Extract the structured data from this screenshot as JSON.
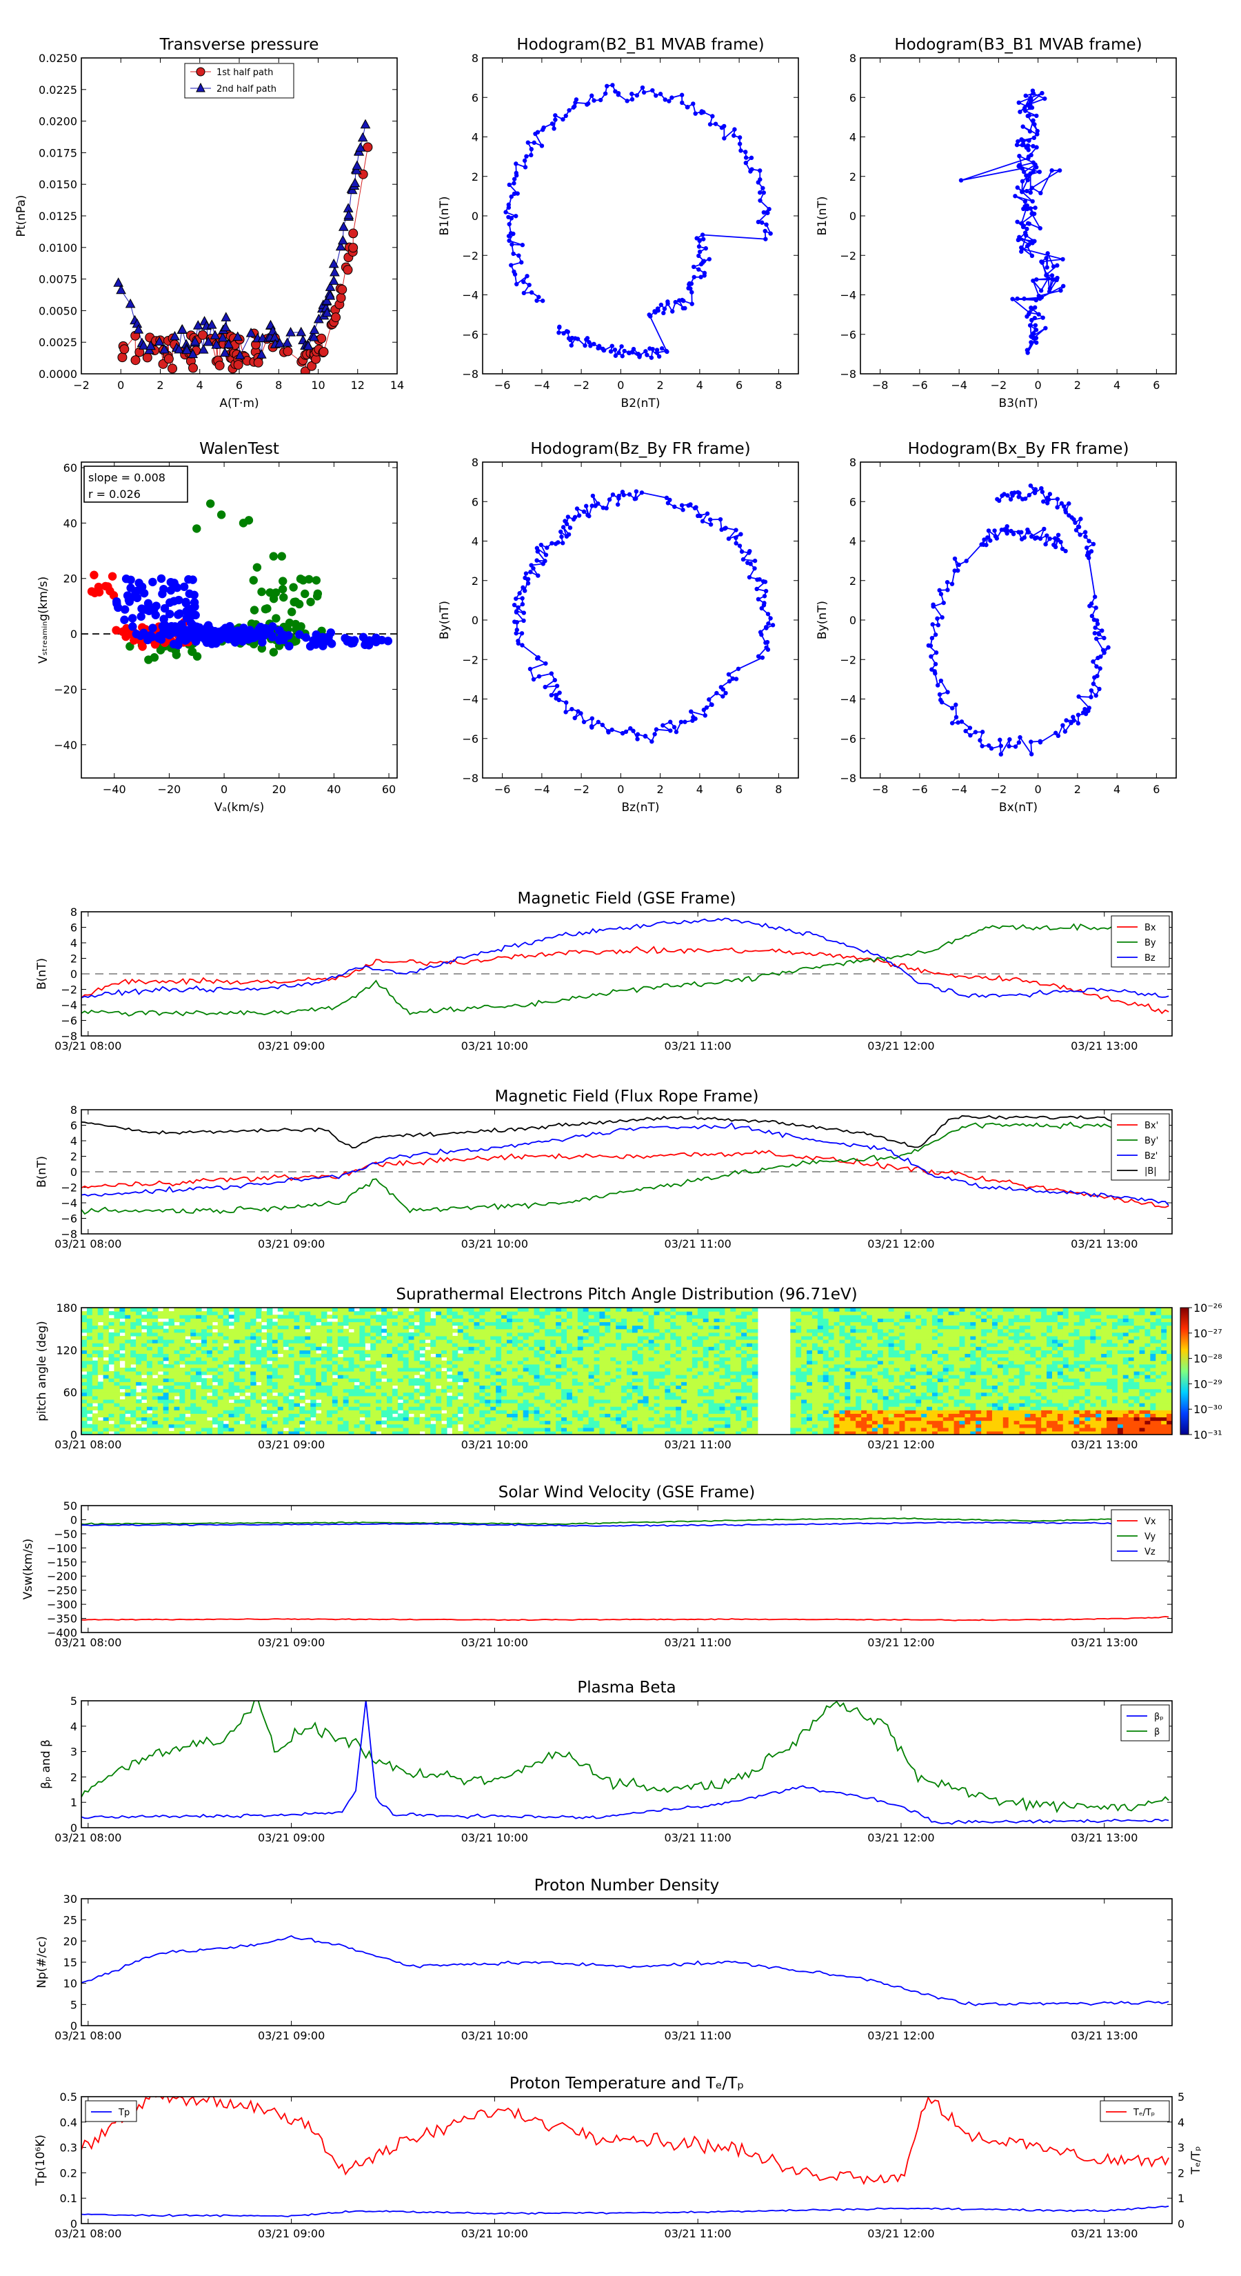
{
  "colors": {
    "red": "#ff0000",
    "green": "#008000",
    "blue": "#0000ff",
    "black": "#000000",
    "marker_red": "#d62020",
    "marker_blue": "#1515b5"
  },
  "chart_data": [
    {
      "id": "pt",
      "type": "scatter",
      "title": "Transverse pressure",
      "xlabel": "A(T·m)",
      "ylabel": "Pt(nPa)",
      "xlim": [
        -2,
        14
      ],
      "ylim": [
        0,
        0.025
      ],
      "xticks": [
        -2,
        0,
        2,
        4,
        6,
        8,
        10,
        12,
        14
      ],
      "yticks": [
        0.0,
        0.0025,
        0.005,
        0.0075,
        0.01,
        0.0125,
        0.015,
        0.0175,
        0.02,
        0.0225,
        0.025
      ],
      "ytick_labels": [
        "0.0000",
        "0.0025",
        "0.0050",
        "0.0075",
        "0.0100",
        "0.0125",
        "0.0150",
        "0.0175",
        "0.0200",
        "0.0225",
        "0.0250"
      ],
      "legend_position": "top-center",
      "series": [
        {
          "name": "1st half path",
          "marker": "circle"
        },
        {
          "name": "2nd half path",
          "marker": "triangle"
        }
      ]
    },
    {
      "id": "h1",
      "type": "scatter",
      "title": "Hodogram(B2_B1 MVAB frame)",
      "xlabel": "B2(nT)",
      "ylabel": "B1(nT)",
      "xlim": [
        -7,
        9
      ],
      "ylim": [
        -8,
        8
      ],
      "xticks": [
        -6,
        -4,
        -2,
        0,
        2,
        4,
        6,
        8
      ],
      "yticks": [
        -8,
        -6,
        -4,
        -2,
        0,
        2,
        4,
        6,
        8
      ]
    },
    {
      "id": "h2",
      "type": "scatter",
      "title": "Hodogram(B3_B1 MVAB frame)",
      "xlabel": "B3(nT)",
      "ylabel": "B1(nT)",
      "xlim": [
        -9,
        7
      ],
      "ylim": [
        -8,
        8
      ],
      "xticks": [
        -8,
        -6,
        -4,
        -2,
        0,
        2,
        4,
        6
      ],
      "yticks": [
        -8,
        -6,
        -4,
        -2,
        0,
        2,
        4,
        6,
        8
      ]
    },
    {
      "id": "walen",
      "type": "scatter",
      "title": "WalenTest",
      "xlabel": "Vₐ(km/s)",
      "ylabel": "Vₛₜᵣₑₐₘᵢₙg(km/s)",
      "xlim": [
        -52,
        63
      ],
      "ylim": [
        -52,
        62
      ],
      "xticks": [
        -40,
        -20,
        0,
        20,
        40,
        60
      ],
      "yticks": [
        -40,
        -20,
        0,
        20,
        40,
        60
      ],
      "annotation": [
        "slope = 0.008",
        "r = 0.026"
      ]
    },
    {
      "id": "h3",
      "type": "scatter",
      "title": "Hodogram(Bz_By FR frame)",
      "xlabel": "Bz(nT)",
      "ylabel": "By(nT)",
      "xlim": [
        -7,
        9
      ],
      "ylim": [
        -8,
        8
      ],
      "xticks": [
        -6,
        -4,
        -2,
        0,
        2,
        4,
        6,
        8
      ],
      "yticks": [
        -8,
        -6,
        -4,
        -2,
        0,
        2,
        4,
        6,
        8
      ]
    },
    {
      "id": "h4",
      "type": "scatter",
      "title": "Hodogram(Bx_By FR frame)",
      "xlabel": "Bx(nT)",
      "ylabel": "By(nT)",
      "xlim": [
        -9,
        7
      ],
      "ylim": [
        -8,
        8
      ],
      "xticks": [
        -8,
        -6,
        -4,
        -2,
        0,
        2,
        4,
        6
      ],
      "yticks": [
        -8,
        -6,
        -4,
        -2,
        0,
        2,
        4,
        6,
        8
      ]
    },
    {
      "id": "mfgse",
      "type": "line",
      "title": "Magnetic Field (GSE Frame)",
      "ylabel": "B(nT)",
      "ylim": [
        -8,
        8
      ],
      "yticks": [
        -8,
        -6,
        -4,
        -2,
        0,
        2,
        4,
        6,
        8
      ],
      "legend_position": "top-right",
      "series": [
        {
          "name": "Bx",
          "color": "#ff0000"
        },
        {
          "name": "By",
          "color": "#008000"
        },
        {
          "name": "Bz",
          "color": "#0000ff"
        }
      ]
    },
    {
      "id": "mffr",
      "type": "line",
      "title": "Magnetic Field (Flux Rope Frame)",
      "ylabel": "B(nT)",
      "ylim": [
        -8,
        8
      ],
      "yticks": [
        -8,
        -6,
        -4,
        -2,
        0,
        2,
        4,
        6,
        8
      ],
      "legend_position": "top-right",
      "series": [
        {
          "name": "Bx'",
          "color": "#ff0000"
        },
        {
          "name": "By'",
          "color": "#008000"
        },
        {
          "name": "Bz'",
          "color": "#0000ff"
        },
        {
          "name": "|B|",
          "color": "#000000"
        }
      ]
    },
    {
      "id": "pad",
      "type": "heatmap",
      "title": "Suprathermal Electrons Pitch Angle Distribution (96.71eV)",
      "ylabel": "pitch angle (deg)",
      "ylim": [
        0,
        180
      ],
      "yticks": [
        0,
        60,
        120,
        180
      ],
      "colorbar_labels": [
        "10⁻²⁶",
        "10⁻²⁷",
        "10⁻²⁸",
        "10⁻²⁹",
        "10⁻³⁰",
        "10⁻³¹"
      ]
    },
    {
      "id": "vsw",
      "type": "line",
      "title": "Solar Wind Velocity (GSE Frame)",
      "ylabel": "Vsw(km/s)",
      "ylim": [
        -400,
        50
      ],
      "yticks": [
        -400,
        -350,
        -300,
        -250,
        -200,
        -150,
        -100,
        -50,
        0,
        50
      ],
      "legend_position": "top-right",
      "series": [
        {
          "name": "Vx",
          "color": "#ff0000"
        },
        {
          "name": "Vy",
          "color": "#008000"
        },
        {
          "name": "Vz",
          "color": "#0000ff"
        }
      ]
    },
    {
      "id": "beta",
      "type": "line",
      "title": "Plasma Beta",
      "ylabel": "βₚ and β",
      "ylim": [
        0,
        5
      ],
      "yticks": [
        0,
        1,
        2,
        3,
        4,
        5
      ],
      "legend_position": "top-right",
      "series": [
        {
          "name": "βₚ",
          "color": "#0000ff"
        },
        {
          "name": "β",
          "color": "#008000"
        }
      ]
    },
    {
      "id": "np",
      "type": "line",
      "title": "Proton Number Density",
      "ylabel": "Np(#/cc)",
      "ylim": [
        0,
        30
      ],
      "yticks": [
        0,
        5,
        10,
        15,
        20,
        25,
        30
      ],
      "series": [
        {
          "name": "",
          "color": "#0000ff"
        }
      ]
    },
    {
      "id": "tp",
      "type": "line",
      "title": "Proton Temperature and Tₑ/Tₚ",
      "ylabel": "Tp(10⁶K)",
      "y2label": "Tₑ/Tₚ",
      "ylim": [
        0,
        0.5
      ],
      "yticks": [
        0,
        0.1,
        0.2,
        0.3,
        0.4,
        0.5
      ],
      "y2lim": [
        0,
        5
      ],
      "y2ticks": [
        0,
        1,
        2,
        3,
        4,
        5
      ],
      "series": [
        {
          "name": "Tp",
          "color": "#0000ff"
        },
        {
          "name": "Tₑ/Tₚ",
          "color": "#ff0000"
        }
      ]
    }
  ],
  "time_axis": {
    "tick_labels": [
      "03/21 08:00",
      "03/21 09:00",
      "03/21 10:00",
      "03/21 11:00",
      "03/21 12:00",
      "03/21 13:00"
    ],
    "range": [
      "03/21 07:58",
      "03/21 13:20"
    ]
  }
}
